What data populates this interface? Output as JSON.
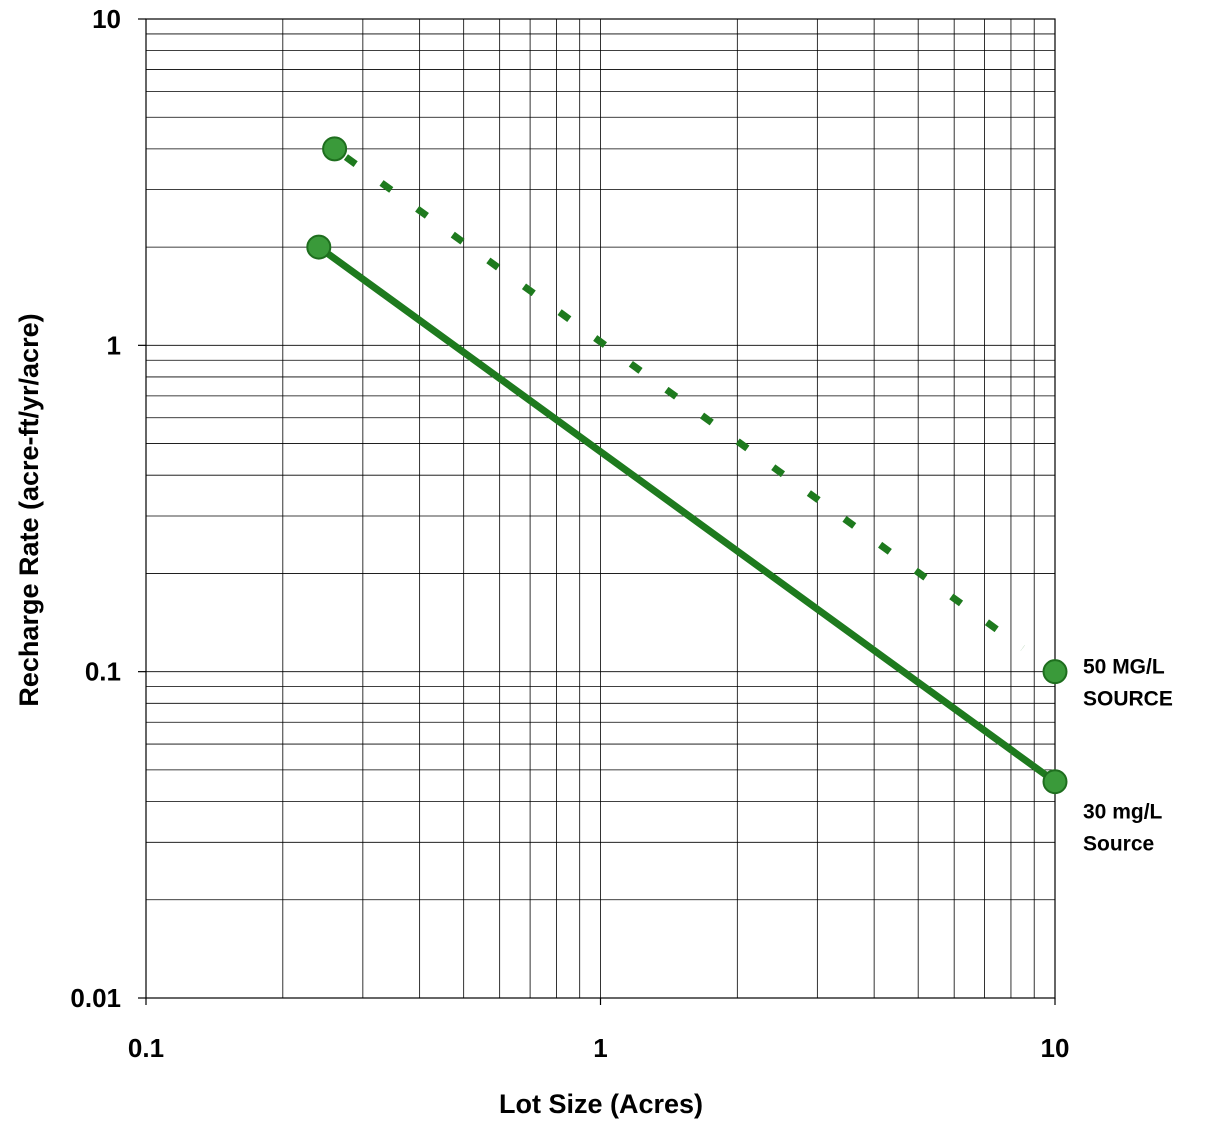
{
  "chart_data": {
    "type": "line",
    "title": "",
    "xlabel": "Lot Size (Acres)",
    "ylabel": "Recharge Rate (acre-ft/yr/acre)",
    "x_scale": "log",
    "y_scale": "log",
    "xlim": [
      0.1,
      10
    ],
    "ylim": [
      0.01,
      10
    ],
    "x_ticks": [
      "0.1",
      "1",
      "10"
    ],
    "y_ticks": [
      "0.01",
      "0.1",
      "1",
      "10"
    ],
    "grid": true,
    "series": [
      {
        "label_lines": [
          "50 MG/L",
          "SOURCE"
        ],
        "style": "dashed",
        "color": "#1e7a1e",
        "marker_color": "#3a9a3a",
        "points": [
          {
            "x": 0.26,
            "y": 4.0
          },
          {
            "x": 10,
            "y": 0.1
          }
        ]
      },
      {
        "label_lines": [
          "30 mg/L",
          "Source"
        ],
        "style": "solid",
        "color": "#1e7a1e",
        "marker_color": "#3a9a3a",
        "points": [
          {
            "x": 0.24,
            "y": 2.0
          },
          {
            "x": 10,
            "y": 0.046
          }
        ]
      }
    ]
  }
}
